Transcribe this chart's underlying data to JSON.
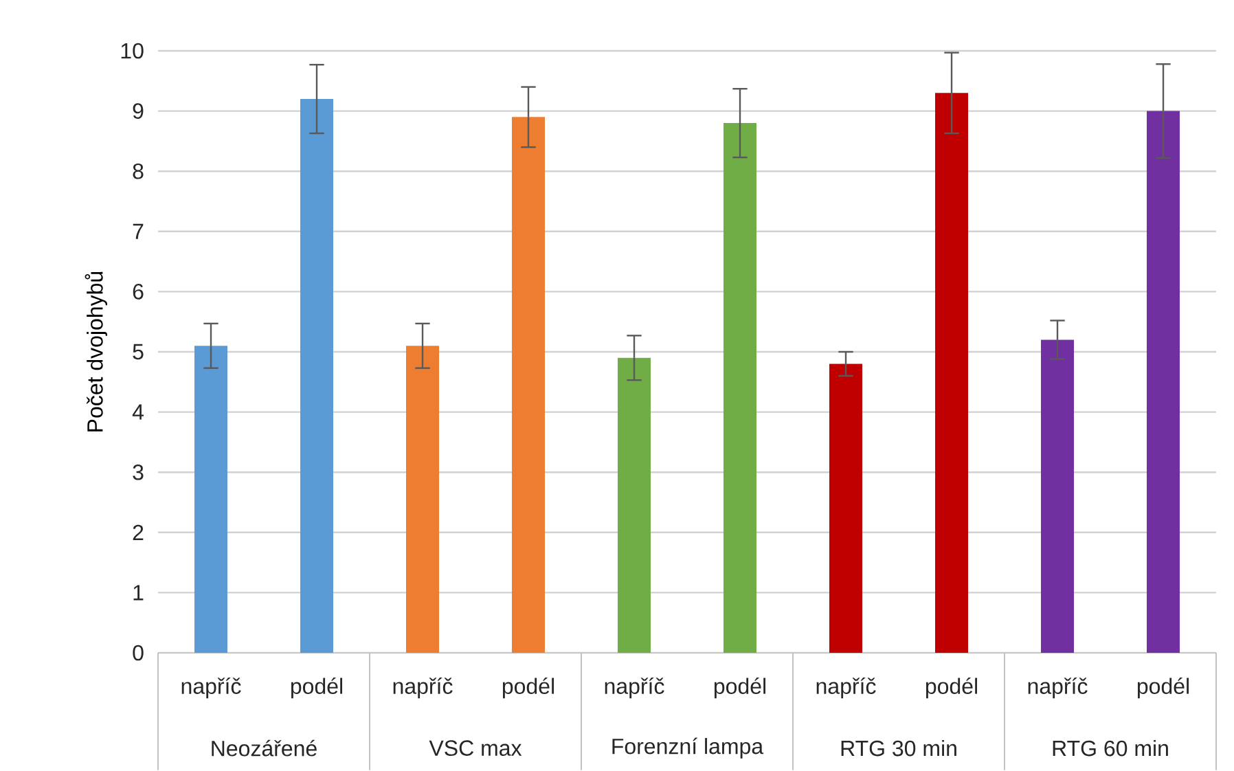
{
  "chart_data": {
    "type": "bar",
    "ylabel": "Počet dvojohybů",
    "categories": [
      "napříč",
      "podél",
      "napříč",
      "podél",
      "napříč",
      "podél",
      "napříč",
      "podél",
      "napříč",
      "podél"
    ],
    "values": [
      5.1,
      9.2,
      5.1,
      8.9,
      4.9,
      8.8,
      4.8,
      9.3,
      5.2,
      9.0
    ],
    "errors": [
      0.37,
      0.57,
      0.37,
      0.5,
      0.37,
      0.57,
      0.2,
      0.67,
      0.32,
      0.78
    ],
    "colors": [
      "#5b9bd5",
      "#5b9bd5",
      "#ed7d31",
      "#ed7d31",
      "#70ad47",
      "#70ad47",
      "#c00000",
      "#c00000",
      "#7030a0",
      "#7030a0"
    ],
    "annotations": [
      "Neozářené",
      "VSC max",
      "Forenzní lampa",
      "RTG 30 min",
      "RTG 60 min"
    ],
    "ylim": [
      0,
      10
    ],
    "yticks": [
      0,
      1,
      2,
      3,
      4,
      5,
      6,
      7,
      8,
      9,
      10
    ],
    "grid": "y"
  }
}
